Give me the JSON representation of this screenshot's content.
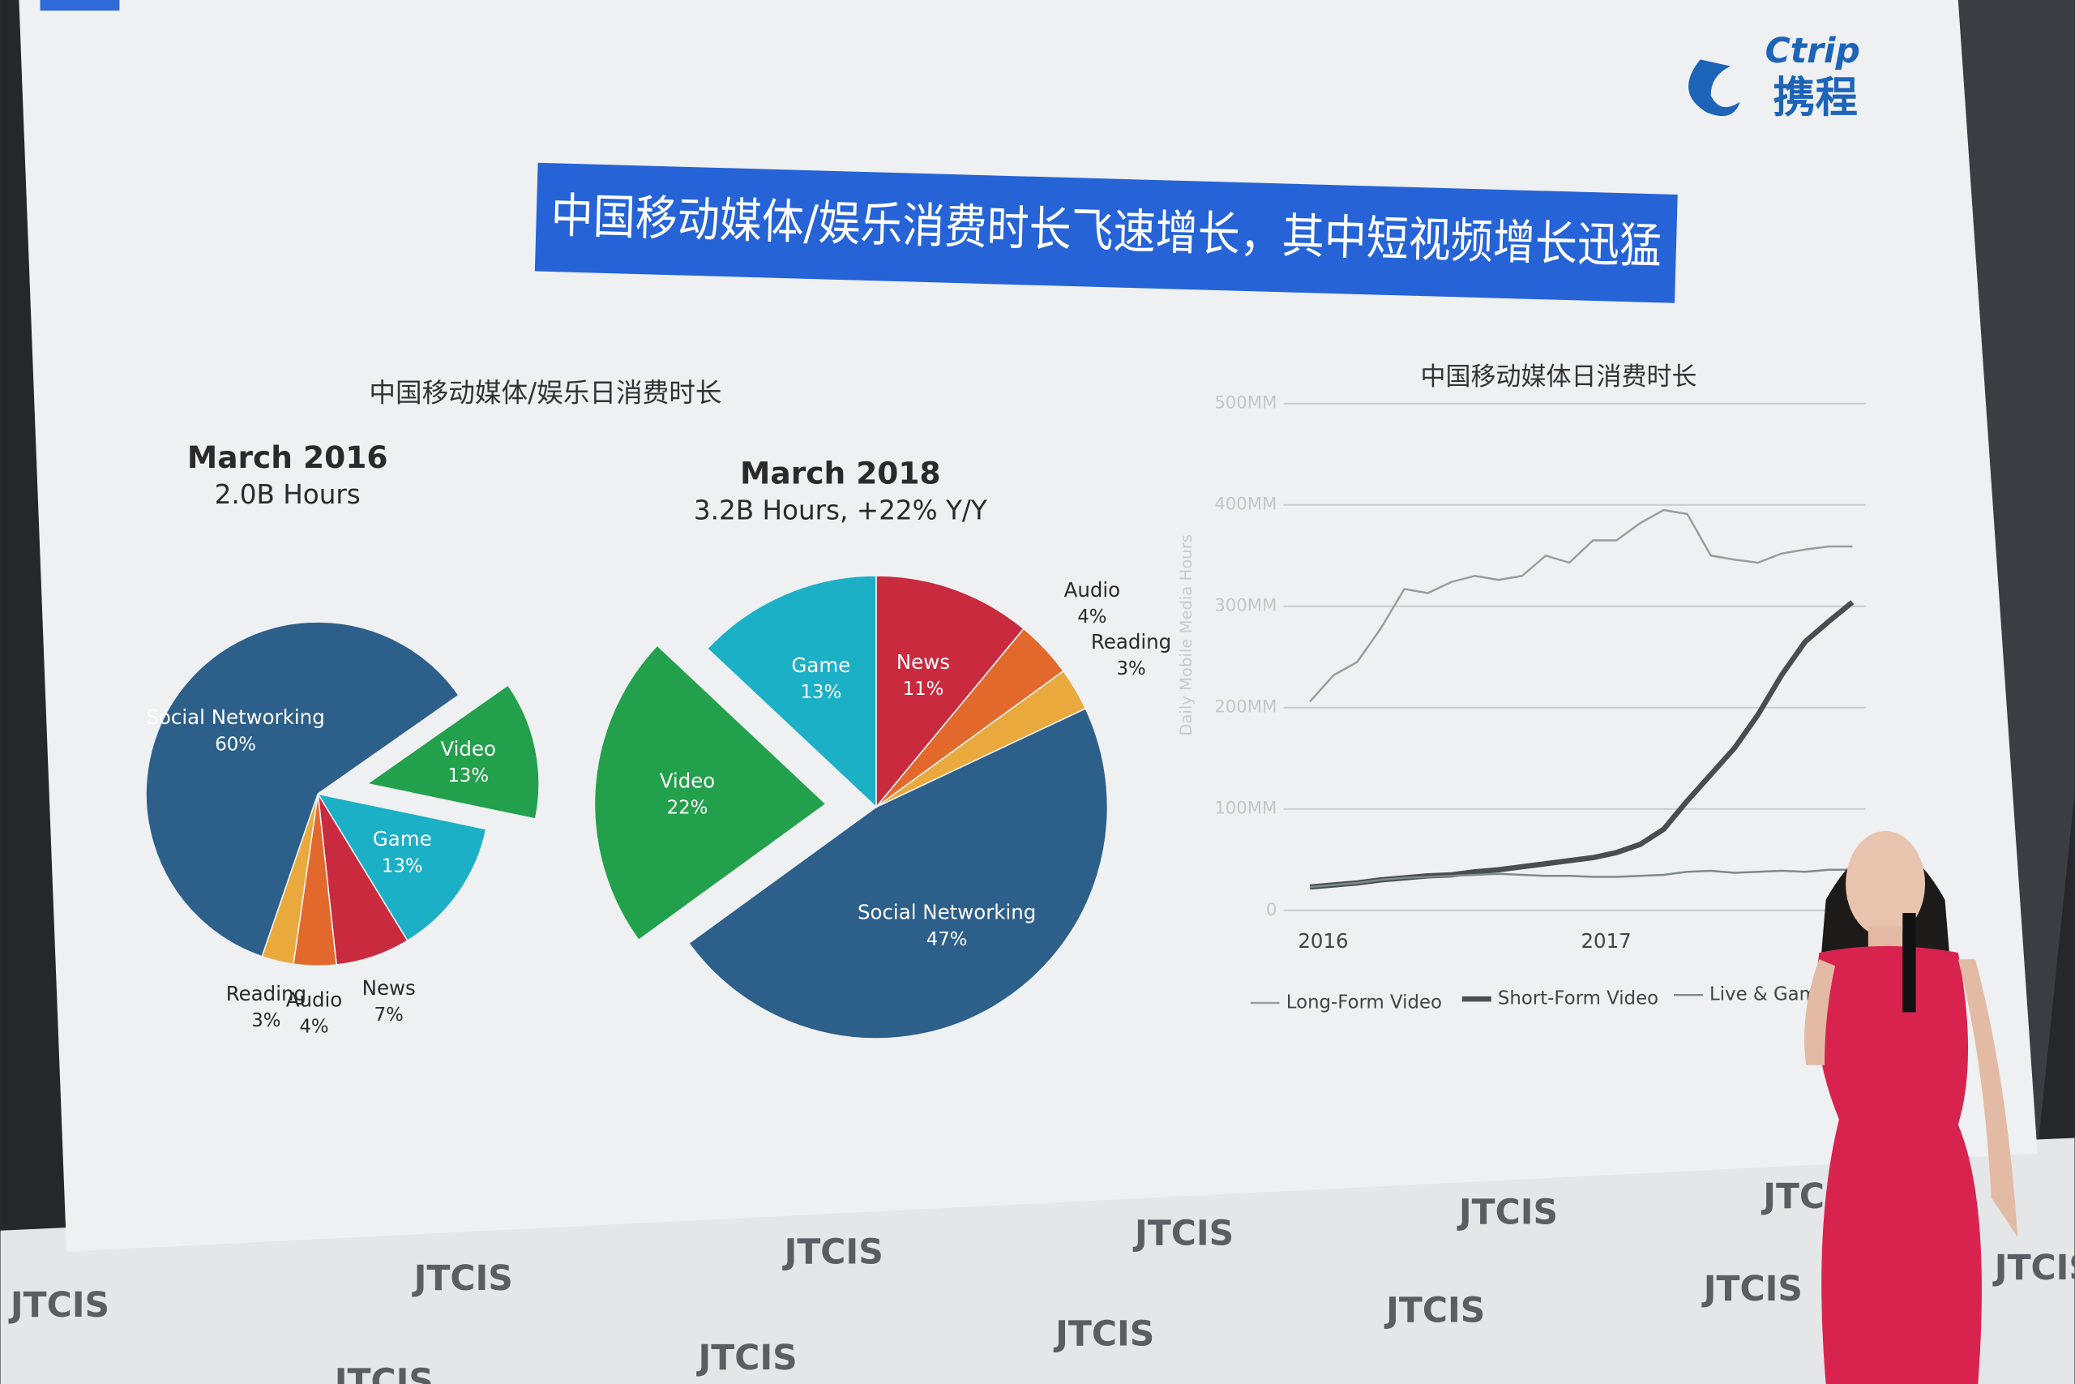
{
  "logo": {
    "en": "Ctrip",
    "cn": "携程"
  },
  "banner": "中国移动媒体/娱乐消费时长飞速增长，其中短视频增长迅猛",
  "pie_group_title": "中国移动媒体/娱乐日消费时长",
  "backdrop": {
    "logo": "JTCIS"
  },
  "chart_data": [
    {
      "type": "pie",
      "title": "March 2016",
      "subtitle": "2.0B Hours",
      "categories": [
        "Video",
        "Game",
        "News",
        "Audio",
        "Reading",
        "Social Networking"
      ],
      "values": [
        13,
        13,
        7,
        4,
        3,
        60
      ],
      "value_labels": [
        "13%",
        "13%",
        "7%",
        "4%",
        "3%",
        "60%"
      ],
      "colors": [
        "#23a04c",
        "#1bb0c6",
        "#c92a3e",
        "#e2692b",
        "#e9a93c",
        "#2d5f8b"
      ]
    },
    {
      "type": "pie",
      "title": "March 2018",
      "subtitle": "3.2B Hours, +22% Y/Y",
      "categories": [
        "News",
        "Audio",
        "Reading",
        "Social Networking",
        "Video",
        "Game"
      ],
      "values": [
        11,
        4,
        3,
        47,
        22,
        13
      ],
      "value_labels": [
        "11%",
        "4%",
        "3%",
        "47%",
        "22%",
        "13%"
      ],
      "colors": [
        "#c92a3e",
        "#e2692b",
        "#e9a93c",
        "#2d5f8b",
        "#23a04c",
        "#1bb0c6"
      ]
    },
    {
      "type": "line",
      "title": "中国移动媒体日消费时长",
      "y_label": "Daily Mobile Media Hours",
      "categories": [
        "2016",
        null,
        null,
        null,
        null,
        null,
        null,
        null,
        null,
        null,
        null,
        null,
        "2017",
        null,
        null,
        null,
        null,
        null,
        null,
        null,
        null,
        null,
        null,
        null
      ],
      "ylim": [
        0,
        500
      ],
      "yticks": [
        0,
        {
          "value": 100,
          "label": "100MM"
        },
        {
          "value": 200,
          "label": "200MM"
        },
        {
          "value": 300,
          "label": "300MM"
        },
        {
          "value": 400,
          "label": "400MM"
        },
        {
          "value": 500,
          "label": "500MM"
        }
      ],
      "grid": true,
      "legend": "bottom",
      "series": [
        {
          "name": "Long-Form Video",
          "color": "#9a9c9c",
          "values": [
            206,
            232,
            245,
            278,
            317,
            313,
            324,
            330,
            326,
            330,
            350,
            343,
            365,
            365,
            382,
            395,
            391,
            350,
            346,
            343,
            352,
            356,
            359,
            359
          ]
        },
        {
          "name": "Short-Form Video",
          "color": "#4a4d50",
          "values": [
            23,
            25,
            27,
            30,
            32,
            34,
            35,
            38,
            40,
            43,
            46,
            49,
            52,
            57,
            65,
            80,
            108,
            134,
            160,
            193,
            232,
            265,
            285,
            304
          ]
        },
        {
          "name": "Live & Game",
          "color": "#7d8a8a",
          "values": [
            23,
            25,
            27,
            30,
            32,
            33,
            34,
            35,
            36,
            35,
            34,
            34,
            33,
            33,
            34,
            35,
            38,
            39,
            37,
            38,
            39,
            38,
            40,
            40
          ]
        }
      ]
    }
  ]
}
